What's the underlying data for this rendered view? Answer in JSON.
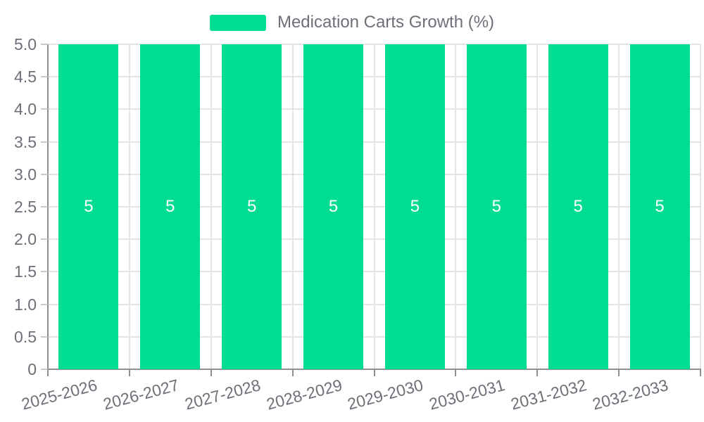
{
  "chart_data": {
    "type": "bar",
    "title": "Medication Carts Growth (%)",
    "categories": [
      "2025-2026",
      "2026-2027",
      "2027-2028",
      "2028-2029",
      "2029-2030",
      "2030-2031",
      "2031-2032",
      "2032-2033"
    ],
    "series": [
      {
        "name": "Medication Carts Growth (%)",
        "values": [
          5,
          5,
          5,
          5,
          5,
          5,
          5,
          5
        ]
      }
    ],
    "value_labels": [
      "5",
      "5",
      "5",
      "5",
      "5",
      "5",
      "5",
      "5"
    ],
    "xlabel": "",
    "ylabel": "",
    "ylim": [
      0,
      5
    ],
    "y_tick_labels": [
      "0",
      "0.5",
      "1.0",
      "1.5",
      "2.0",
      "2.5",
      "3.0",
      "3.5",
      "4.0",
      "4.5",
      "5.0"
    ],
    "grid": true,
    "legend_position": "top-center",
    "x_label_rotation_deg": -15
  },
  "legend": {
    "label": "Medication Carts Growth (%)",
    "swatch_icon": "legend-swatch"
  },
  "colors": {
    "bar": "#00DC91",
    "bar_label": "#FFFFFF",
    "text": "#6E7079",
    "axis_line": "#8F8F8F",
    "grid_line": "#E2E4E8",
    "y_tick": "#C9CBCF",
    "background": "#FFFFFF"
  }
}
